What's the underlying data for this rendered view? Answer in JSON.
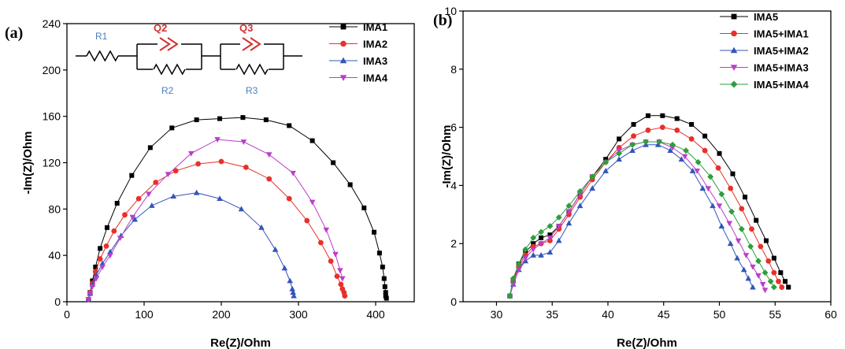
{
  "chart_data": [
    {
      "type": "scatter",
      "panel_label": "(a)",
      "xlabel": "Re(Z)/Ohm",
      "ylabel": "-Im(Z)/Ohm",
      "xlim": [
        0,
        450
      ],
      "ylim": [
        0,
        240
      ],
      "xticks": [
        0,
        100,
        200,
        300,
        400
      ],
      "yticks": [
        0,
        40,
        80,
        120,
        160,
        200,
        240
      ],
      "legend_position": "top-right",
      "inset_circuit": {
        "labels": [
          "R1",
          "Q2",
          "R2",
          "Q3",
          "R3"
        ],
        "r_color": "#4a7fc1",
        "q_color": "#d62f2f"
      },
      "series": [
        {
          "name": "IMA1",
          "color": "#000000",
          "marker": "square",
          "x": [
            28,
            30,
            33,
            37,
            43,
            52,
            65,
            84,
            108,
            136,
            168,
            198,
            228,
            258,
            288,
            318,
            345,
            367,
            385,
            398,
            405,
            409,
            411,
            412,
            413,
            413,
            414
          ],
          "y": [
            2,
            8,
            18,
            30,
            46,
            64,
            85,
            109,
            133,
            150,
            157,
            158,
            159,
            157,
            152,
            139,
            120,
            101,
            81,
            60,
            42,
            30,
            20,
            13,
            8,
            5,
            3
          ]
        },
        {
          "name": "IMA2",
          "color": "#e8302a",
          "marker": "circle",
          "x": [
            28,
            30,
            33,
            37,
            43,
            51,
            61,
            75,
            93,
            115,
            141,
            170,
            200,
            232,
            262,
            288,
            311,
            329,
            342,
            350,
            355,
            357,
            359,
            360
          ],
          "y": [
            2,
            8,
            16,
            26,
            37,
            48,
            61,
            75,
            89,
            103,
            113,
            119,
            121,
            116,
            106,
            89,
            70,
            51,
            35,
            22,
            15,
            11,
            8,
            5
          ]
        },
        {
          "name": "IMA3",
          "color": "#3355bb",
          "marker": "triangle-up",
          "x": [
            28,
            30,
            33,
            38,
            46,
            56,
            70,
            88,
            110,
            138,
            168,
            198,
            226,
            252,
            270,
            282,
            289,
            292,
            293,
            294
          ],
          "y": [
            2,
            7,
            15,
            23,
            33,
            43,
            57,
            71,
            83,
            91,
            94,
            89,
            80,
            64,
            45,
            29,
            18,
            11,
            8,
            5
          ]
        },
        {
          "name": "IMA4",
          "color": "#bb3fc8",
          "marker": "triangle-down",
          "x": [
            28,
            30,
            33,
            38,
            46,
            56,
            69,
            85,
            106,
            131,
            161,
            195,
            229,
            262,
            293,
            318,
            336,
            348,
            354,
            357
          ],
          "y": [
            2,
            7,
            13,
            20,
            30,
            40,
            55,
            73,
            93,
            110,
            128,
            140,
            138,
            127,
            111,
            86,
            62,
            41,
            27,
            20
          ]
        }
      ]
    },
    {
      "type": "scatter",
      "panel_label": "(b)",
      "xlabel": "Re(Z)/Ohm",
      "ylabel": "-Im(Z)/Ohm",
      "xlim": [
        27,
        60
      ],
      "ylim": [
        0,
        10
      ],
      "xticks": [
        30,
        35,
        40,
        45,
        50,
        55,
        60
      ],
      "yticks": [
        0,
        2,
        4,
        6,
        8,
        10
      ],
      "legend_position": "top-right",
      "series": [
        {
          "name": "IMA5",
          "color": "#000000",
          "marker": "square",
          "x": [
            31.2,
            31.5,
            32.0,
            32.6,
            33.3,
            34.0,
            34.8,
            35.6,
            36.5,
            37.5,
            38.6,
            39.8,
            41.0,
            42.3,
            43.6,
            44.9,
            46.2,
            47.5,
            48.7,
            50.0,
            51.2,
            52.3,
            53.3,
            54.2,
            54.9,
            55.5,
            55.9,
            56.2
          ],
          "y": [
            0.2,
            0.7,
            1.3,
            1.7,
            2.0,
            2.2,
            2.3,
            2.6,
            3.1,
            3.7,
            4.3,
            4.9,
            5.6,
            6.1,
            6.4,
            6.4,
            6.3,
            6.1,
            5.7,
            5.1,
            4.4,
            3.6,
            2.8,
            2.1,
            1.5,
            1.0,
            0.7,
            0.5
          ]
        },
        {
          "name": "IMA5+IMA1",
          "color": "#e8302a",
          "marker": "circle",
          "x": [
            31.2,
            31.5,
            32.0,
            32.6,
            33.3,
            34.0,
            34.8,
            35.6,
            36.5,
            37.5,
            38.6,
            39.8,
            41.0,
            42.3,
            43.6,
            44.9,
            46.2,
            47.5,
            48.7,
            49.9,
            51.0,
            52.0,
            52.9,
            53.7,
            54.4,
            54.9,
            55.3,
            55.6
          ],
          "y": [
            0.2,
            0.7,
            1.2,
            1.6,
            1.9,
            2.0,
            2.1,
            2.5,
            3.0,
            3.6,
            4.2,
            4.8,
            5.3,
            5.7,
            5.9,
            6.0,
            5.9,
            5.6,
            5.2,
            4.6,
            3.9,
            3.2,
            2.5,
            1.9,
            1.4,
            1.0,
            0.7,
            0.5
          ]
        },
        {
          "name": "IMA5+IMA2",
          "color": "#3355bb",
          "marker": "triangle-up",
          "x": [
            31.2,
            31.5,
            32.0,
            32.6,
            33.3,
            34.0,
            34.8,
            35.6,
            36.5,
            37.5,
            38.6,
            39.8,
            41.0,
            42.2,
            43.4,
            44.5,
            45.6,
            46.6,
            47.6,
            48.5,
            49.4,
            50.2,
            51.0,
            51.6,
            52.2,
            52.6,
            53.0
          ],
          "y": [
            0.2,
            0.6,
            1.1,
            1.4,
            1.6,
            1.6,
            1.7,
            2.1,
            2.7,
            3.3,
            3.9,
            4.5,
            4.9,
            5.2,
            5.4,
            5.4,
            5.2,
            4.9,
            4.5,
            3.9,
            3.3,
            2.6,
            2.0,
            1.5,
            1.1,
            0.8,
            0.5
          ]
        },
        {
          "name": "IMA5+IMA3",
          "color": "#bb3fc8",
          "marker": "triangle-down",
          "x": [
            31.2,
            31.5,
            32.0,
            32.6,
            33.3,
            34.0,
            34.8,
            35.6,
            36.5,
            37.5,
            38.6,
            39.8,
            41.0,
            42.2,
            43.4,
            44.6,
            45.8,
            46.9,
            48.0,
            49.0,
            50.0,
            50.9,
            51.7,
            52.4,
            53.0,
            53.5,
            53.9,
            54.1
          ],
          "y": [
            0.2,
            0.6,
            1.1,
            1.5,
            1.8,
            2.0,
            2.2,
            2.6,
            3.1,
            3.7,
            4.3,
            4.8,
            5.2,
            5.4,
            5.5,
            5.5,
            5.3,
            5.0,
            4.5,
            3.9,
            3.3,
            2.7,
            2.1,
            1.6,
            1.2,
            0.9,
            0.6,
            0.4
          ]
        },
        {
          "name": "IMA5+IMA4",
          "color": "#2e9e3d",
          "marker": "diamond",
          "x": [
            31.2,
            31.5,
            32.0,
            32.6,
            33.3,
            34.0,
            34.8,
            35.6,
            36.5,
            37.5,
            38.6,
            39.8,
            41.0,
            42.2,
            43.4,
            44.6,
            45.8,
            47.0,
            48.1,
            49.2,
            50.2,
            51.1,
            52.0,
            52.8,
            53.5,
            54.1,
            54.6,
            54.9
          ],
          "y": [
            0.2,
            0.8,
            1.3,
            1.8,
            2.2,
            2.4,
            2.6,
            2.9,
            3.3,
            3.8,
            4.3,
            4.8,
            5.1,
            5.4,
            5.5,
            5.5,
            5.4,
            5.2,
            4.8,
            4.3,
            3.7,
            3.1,
            2.5,
            1.9,
            1.4,
            1.0,
            0.7,
            0.5
          ]
        }
      ]
    }
  ]
}
